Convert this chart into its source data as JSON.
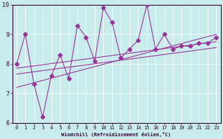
{
  "xlabel": "Windchill (Refroidissement éolien,°C)",
  "bg_color": "#c8ecec",
  "line_color": "#993399",
  "spine_color": "#330033",
  "xlim": [
    -0.5,
    23.5
  ],
  "ylim": [
    6,
    10
  ],
  "xticks": [
    0,
    1,
    2,
    3,
    4,
    5,
    6,
    7,
    8,
    9,
    10,
    11,
    12,
    13,
    14,
    15,
    16,
    17,
    18,
    19,
    20,
    21,
    22,
    23
  ],
  "yticks": [
    6,
    7,
    8,
    9,
    10
  ],
  "main_x": [
    0,
    1,
    2,
    3,
    4,
    5,
    6,
    7,
    8,
    9,
    10,
    11,
    12,
    13,
    14,
    15,
    16,
    17,
    18,
    19,
    20,
    21,
    22,
    23
  ],
  "main_y": [
    8.0,
    9.0,
    7.3,
    6.2,
    7.6,
    8.3,
    7.5,
    9.3,
    8.9,
    8.1,
    9.9,
    9.4,
    8.2,
    8.5,
    8.8,
    10.0,
    8.5,
    9.0,
    8.5,
    8.6,
    8.6,
    8.7,
    8.7,
    8.9
  ],
  "line1_x": [
    0,
    23
  ],
  "line1_y": [
    7.85,
    8.75
  ],
  "line2_x": [
    0,
    23
  ],
  "line2_y": [
    7.65,
    8.55
  ],
  "line3_x": [
    0,
    23
  ],
  "line3_y": [
    7.2,
    9.0
  ],
  "tick_fontsize": 5,
  "xlabel_fontsize": 5,
  "linewidth": 0.8,
  "marker_size": 3
}
